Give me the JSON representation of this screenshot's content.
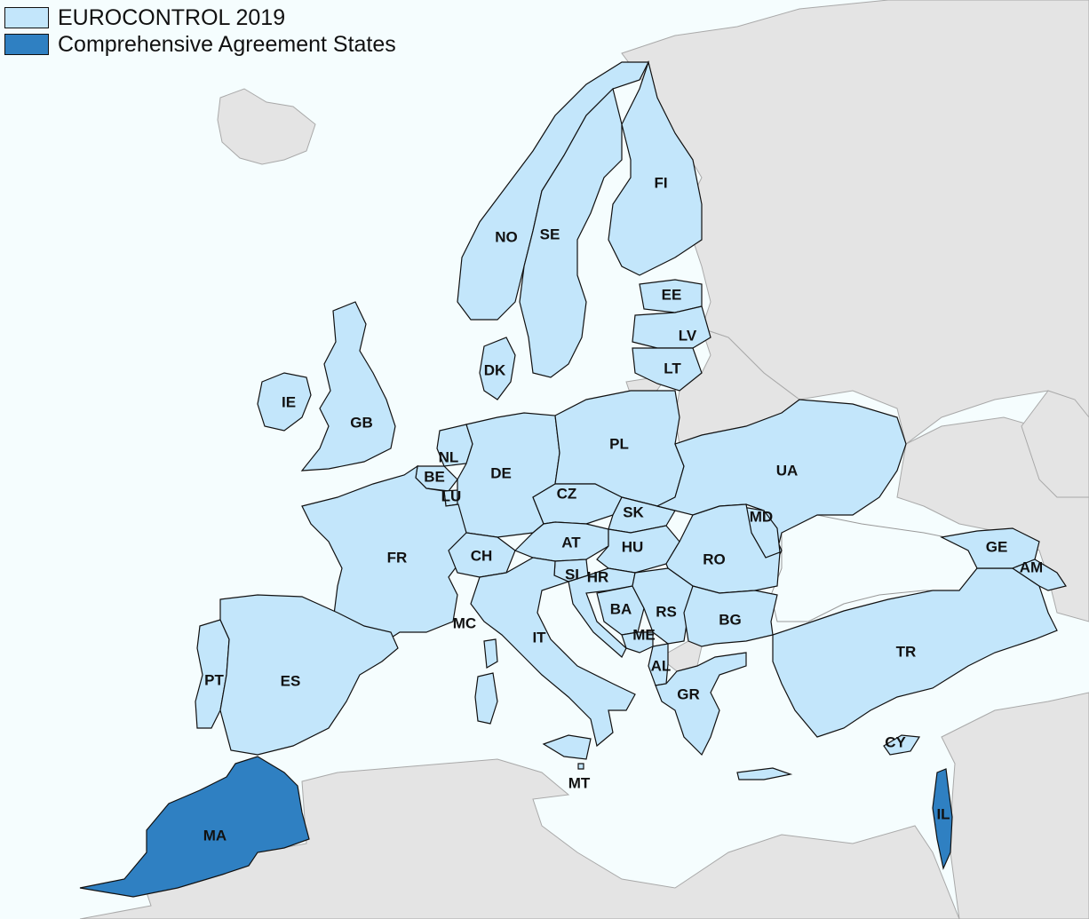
{
  "legend": {
    "items": [
      {
        "label": "EUROCONTROL 2019",
        "color": "#c3e6fb"
      },
      {
        "label": "Comprehensive Agreement States",
        "color": "#2f80c2"
      }
    ]
  },
  "colors": {
    "eurocontrol_member": "#c3e6fb",
    "comprehensive_agreement": "#2f80c2",
    "other_land": "#e4e4e4",
    "sea": "#f5fdfe"
  },
  "country_labels": {
    "NO": "NO",
    "SE": "SE",
    "FI": "FI",
    "EE": "EE",
    "LV": "LV",
    "LT": "LT",
    "DK": "DK",
    "IE": "IE",
    "GB": "GB",
    "NL": "NL",
    "BE": "BE",
    "LU": "LU",
    "DE": "DE",
    "PL": "PL",
    "CZ": "CZ",
    "SK": "SK",
    "UA": "UA",
    "MD": "MD",
    "FR": "FR",
    "CH": "CH",
    "AT": "AT",
    "HU": "HU",
    "RO": "RO",
    "SI": "SI",
    "HR": "HR",
    "BA": "BA",
    "RS": "RS",
    "BG": "BG",
    "MC": "MC",
    "IT": "IT",
    "ME": "ME",
    "AL": "AL",
    "GR": "GR",
    "TR": "TR",
    "GE": "GE",
    "AM": "AM",
    "PT": "PT",
    "ES": "ES",
    "CY": "CY",
    "MT": "MT",
    "MA": "MA",
    "IL": "IL"
  }
}
